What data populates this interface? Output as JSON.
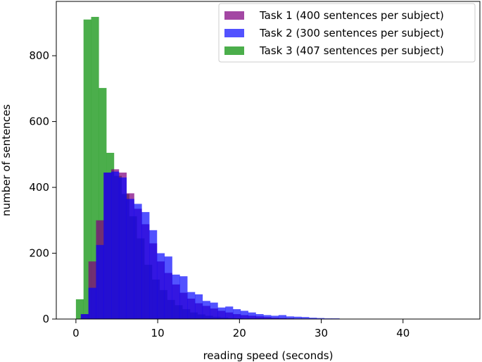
{
  "chart_data": {
    "type": "bar",
    "xlabel": "reading speed (seconds)",
    "ylabel": "number of sentences",
    "xlim": [
      -2.4,
      49.4
    ],
    "ylim": [
      0,
      965
    ],
    "xticks": [
      0,
      10,
      20,
      30,
      40
    ],
    "yticks": [
      0,
      200,
      400,
      600,
      800
    ],
    "grid": false,
    "legend_position": "top-right",
    "bin_width": 0.93,
    "series": [
      {
        "name": "Task 3 (407 sentences per subject)",
        "color": "#2ca02c",
        "alpha": 0.85,
        "bin_start": 0,
        "values": [
          60,
          910,
          918,
          702,
          505,
          435,
          380,
          312,
          245,
          165,
          120,
          88,
          58,
          42,
          30,
          20,
          14,
          10,
          7,
          5,
          3,
          2
        ]
      },
      {
        "name": "Task 1 (400 sentences per subject)",
        "color": "#800080",
        "alpha": 0.72,
        "bin_start": 0.6,
        "values": [
          15,
          175,
          300,
          445,
          455,
          445,
          382,
          335,
          288,
          230,
          175,
          140,
          105,
          80,
          62,
          48,
          40,
          32,
          25,
          20,
          15,
          12,
          10,
          8,
          6,
          4,
          3,
          2,
          1
        ]
      },
      {
        "name": "Task 2 (300 sentences per subject)",
        "color": "#0000ff",
        "alpha": 0.68,
        "bin_start": 0.6,
        "values": [
          15,
          95,
          225,
          445,
          448,
          430,
          365,
          350,
          325,
          270,
          200,
          190,
          135,
          130,
          82,
          75,
          55,
          50,
          35,
          38,
          30,
          25,
          20,
          15,
          12,
          10,
          12,
          8,
          7,
          6,
          4,
          3,
          2,
          2,
          1,
          1,
          1,
          0,
          0,
          0,
          0,
          0,
          0,
          0,
          0,
          0,
          0,
          0,
          0,
          0,
          0,
          0,
          0,
          0,
          0,
          0,
          0,
          0,
          0,
          0,
          0,
          0,
          0,
          0
        ]
      }
    ],
    "legend": [
      {
        "label": "Task 1 (400 sentences per subject)",
        "color": "#800080",
        "alpha": 0.72
      },
      {
        "label": "Task 2 (300 sentences per subject)",
        "color": "#0000ff",
        "alpha": 0.68
      },
      {
        "label": "Task 3 (407 sentences per subject)",
        "color": "#2ca02c",
        "alpha": 0.85
      }
    ]
  }
}
